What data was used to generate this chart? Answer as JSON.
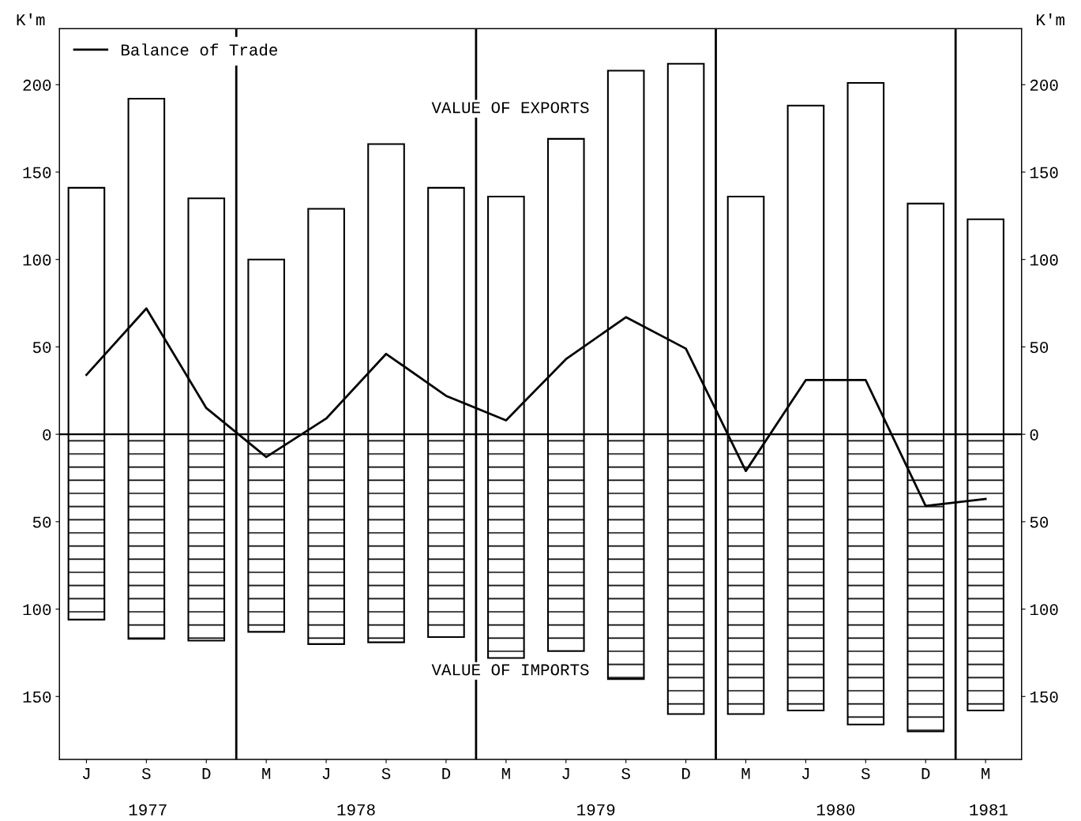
{
  "chart_data": {
    "type": "bar",
    "ylabel": "K'm",
    "y2label": "K'm",
    "categories": [
      "J",
      "S",
      "D",
      "M",
      "J",
      "S",
      "D",
      "M",
      "J",
      "S",
      "D",
      "M",
      "J",
      "S",
      "D",
      "M"
    ],
    "series": [
      {
        "name": "VALUE OF EXPORTS",
        "color": "#000000",
        "values": [
          141,
          192,
          135,
          100,
          129,
          166,
          141,
          136,
          169,
          208,
          212,
          136,
          188,
          201,
          132,
          123
        ]
      },
      {
        "name": "VALUE OF IMPORTS",
        "color": "#000000",
        "values": [
          -106,
          -117,
          -118,
          -113,
          -120,
          -119,
          -116,
          -128,
          -124,
          -140,
          -160,
          -160,
          -158,
          -166,
          -170,
          -158
        ]
      },
      {
        "name": "Balance of Trade",
        "type": "line",
        "color": "#000000",
        "values": [
          34,
          72,
          15,
          -13,
          9,
          46,
          22,
          8,
          43,
          67,
          49,
          -21,
          31,
          31,
          -41,
          -37
        ]
      }
    ],
    "ylim": [
      -186,
      232
    ],
    "yticks": [
      {
        "value": -150,
        "label": "150"
      },
      {
        "value": -100,
        "label": "100"
      },
      {
        "value": -50,
        "label": "50"
      },
      0,
      50,
      100,
      150,
      200
    ],
    "y2lim": [
      -186,
      232
    ],
    "y2ticks": [
      {
        "value": -150,
        "label": "150"
      },
      {
        "value": -100,
        "label": "100"
      },
      {
        "value": -50,
        "label": "50"
      },
      0,
      50,
      100,
      150,
      200
    ],
    "ref_lines": [
      {
        "axis": "y",
        "value": 0
      }
    ],
    "stacked": true,
    "annotations": [
      "1977",
      "1978",
      "1979",
      "1980",
      "1981"
    ],
    "legend": "top left",
    "grid": false
  }
}
